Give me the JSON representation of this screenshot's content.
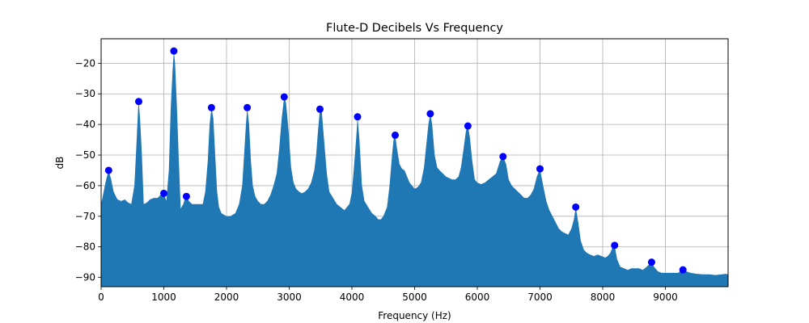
{
  "chart_data": {
    "type": "area",
    "title": "Flute-D Decibels Vs Frequency",
    "xlabel": "Frequency (Hz)",
    "ylabel": "dB",
    "xlim": [
      0,
      10000
    ],
    "ylim": [
      -93,
      -12
    ],
    "grid": true,
    "xticks": [
      0,
      1000,
      2000,
      3000,
      4000,
      5000,
      6000,
      7000,
      8000,
      9000
    ],
    "xtick_labels": [
      "0",
      "1000",
      "2000",
      "3000",
      "4000",
      "5000",
      "6000",
      "7000",
      "8000",
      "9000"
    ],
    "yticks": [
      -90,
      -80,
      -70,
      -60,
      -50,
      -40,
      -30,
      -20
    ],
    "ytick_labels": [
      "−90",
      "−80",
      "−70",
      "−60",
      "−50",
      "−40",
      "−30",
      "−20"
    ],
    "colors": {
      "fill": "#1f77b4",
      "peaks": "#0000ff",
      "grid": "#b0b0b0"
    },
    "spectrum": [
      [
        0,
        -66
      ],
      [
        40,
        -62
      ],
      [
        80,
        -58
      ],
      [
        120,
        -55
      ],
      [
        160,
        -58
      ],
      [
        200,
        -62
      ],
      [
        260,
        -64.5
      ],
      [
        320,
        -65
      ],
      [
        380,
        -64.5
      ],
      [
        430,
        -65.5
      ],
      [
        480,
        -66
      ],
      [
        530,
        -60
      ],
      [
        560,
        -48
      ],
      [
        590,
        -35
      ],
      [
        600,
        -32.5
      ],
      [
        620,
        -38
      ],
      [
        650,
        -50
      ],
      [
        680,
        -66
      ],
      [
        730,
        -65.5
      ],
      [
        780,
        -64.5
      ],
      [
        840,
        -64
      ],
      [
        900,
        -64
      ],
      [
        950,
        -63
      ],
      [
        1000,
        -62.5
      ],
      [
        1040,
        -65
      ],
      [
        1080,
        -55
      ],
      [
        1110,
        -35
      ],
      [
        1140,
        -22
      ],
      [
        1160,
        -16
      ],
      [
        1180,
        -20
      ],
      [
        1210,
        -35
      ],
      [
        1240,
        -52
      ],
      [
        1270,
        -67.5
      ],
      [
        1310,
        -66
      ],
      [
        1340,
        -64
      ],
      [
        1360,
        -63.5
      ],
      [
        1400,
        -65
      ],
      [
        1450,
        -66
      ],
      [
        1500,
        -66
      ],
      [
        1560,
        -66
      ],
      [
        1620,
        -66
      ],
      [
        1660,
        -62
      ],
      [
        1700,
        -52
      ],
      [
        1730,
        -40
      ],
      [
        1760,
        -34.5
      ],
      [
        1790,
        -38
      ],
      [
        1820,
        -50
      ],
      [
        1850,
        -62
      ],
      [
        1880,
        -67
      ],
      [
        1920,
        -69
      ],
      [
        1960,
        -69.5
      ],
      [
        2000,
        -70
      ],
      [
        2060,
        -70
      ],
      [
        2100,
        -69.5
      ],
      [
        2140,
        -69
      ],
      [
        2200,
        -66
      ],
      [
        2250,
        -60
      ],
      [
        2280,
        -50
      ],
      [
        2310,
        -40
      ],
      [
        2330,
        -34.5
      ],
      [
        2360,
        -40
      ],
      [
        2390,
        -52
      ],
      [
        2420,
        -60
      ],
      [
        2460,
        -63.5
      ],
      [
        2500,
        -65
      ],
      [
        2550,
        -66
      ],
      [
        2600,
        -66
      ],
      [
        2650,
        -65
      ],
      [
        2700,
        -63
      ],
      [
        2750,
        -60
      ],
      [
        2800,
        -56
      ],
      [
        2840,
        -48
      ],
      [
        2880,
        -38
      ],
      [
        2920,
        -31
      ],
      [
        2950,
        -33
      ],
      [
        2990,
        -42
      ],
      [
        3030,
        -54
      ],
      [
        3070,
        -59
      ],
      [
        3110,
        -61
      ],
      [
        3160,
        -62
      ],
      [
        3200,
        -62.5
      ],
      [
        3250,
        -62
      ],
      [
        3300,
        -61
      ],
      [
        3350,
        -59
      ],
      [
        3400,
        -55
      ],
      [
        3430,
        -50
      ],
      [
        3460,
        -42
      ],
      [
        3490,
        -35
      ],
      [
        3520,
        -36
      ],
      [
        3560,
        -46
      ],
      [
        3600,
        -56
      ],
      [
        3640,
        -62
      ],
      [
        3700,
        -64
      ],
      [
        3760,
        -66
      ],
      [
        3820,
        -67
      ],
      [
        3880,
        -68
      ],
      [
        3920,
        -67
      ],
      [
        3960,
        -66
      ],
      [
        4000,
        -62
      ],
      [
        4040,
        -52
      ],
      [
        4070,
        -44
      ],
      [
        4090,
        -37.5
      ],
      [
        4120,
        -45
      ],
      [
        4160,
        -60
      ],
      [
        4200,
        -65
      ],
      [
        4260,
        -67
      ],
      [
        4320,
        -69
      ],
      [
        4380,
        -70
      ],
      [
        4420,
        -71
      ],
      [
        4460,
        -71
      ],
      [
        4500,
        -70
      ],
      [
        4560,
        -67
      ],
      [
        4600,
        -60
      ],
      [
        4640,
        -50
      ],
      [
        4670,
        -44
      ],
      [
        4690,
        -43.5
      ],
      [
        4720,
        -48
      ],
      [
        4760,
        -53
      ],
      [
        4800,
        -54.5
      ],
      [
        4840,
        -55
      ],
      [
        4880,
        -57
      ],
      [
        4920,
        -59
      ],
      [
        4960,
        -60
      ],
      [
        5000,
        -61
      ],
      [
        5050,
        -60.5
      ],
      [
        5100,
        -59
      ],
      [
        5150,
        -54
      ],
      [
        5190,
        -46
      ],
      [
        5220,
        -40
      ],
      [
        5250,
        -36.5
      ],
      [
        5280,
        -40
      ],
      [
        5320,
        -50
      ],
      [
        5360,
        -54
      ],
      [
        5400,
        -55
      ],
      [
        5450,
        -56
      ],
      [
        5500,
        -57
      ],
      [
        5550,
        -57.5
      ],
      [
        5600,
        -58
      ],
      [
        5650,
        -58
      ],
      [
        5700,
        -57
      ],
      [
        5740,
        -54
      ],
      [
        5780,
        -48
      ],
      [
        5820,
        -42
      ],
      [
        5850,
        -40.5
      ],
      [
        5880,
        -44
      ],
      [
        5920,
        -52
      ],
      [
        5960,
        -58
      ],
      [
        6000,
        -59
      ],
      [
        6060,
        -59.5
      ],
      [
        6120,
        -59
      ],
      [
        6180,
        -58
      ],
      [
        6240,
        -57
      ],
      [
        6300,
        -56
      ],
      [
        6360,
        -52
      ],
      [
        6410,
        -50.5
      ],
      [
        6460,
        -53
      ],
      [
        6500,
        -58
      ],
      [
        6550,
        -60
      ],
      [
        6600,
        -61
      ],
      [
        6650,
        -62
      ],
      [
        6700,
        -63
      ],
      [
        6750,
        -64
      ],
      [
        6800,
        -64
      ],
      [
        6850,
        -63
      ],
      [
        6900,
        -61
      ],
      [
        6950,
        -57
      ],
      [
        7000,
        -54.5
      ],
      [
        7050,
        -60
      ],
      [
        7100,
        -65
      ],
      [
        7150,
        -68
      ],
      [
        7200,
        -70
      ],
      [
        7250,
        -72
      ],
      [
        7300,
        -74
      ],
      [
        7350,
        -75
      ],
      [
        7400,
        -75.5
      ],
      [
        7450,
        -76
      ],
      [
        7500,
        -74
      ],
      [
        7540,
        -71
      ],
      [
        7570,
        -67
      ],
      [
        7610,
        -72
      ],
      [
        7650,
        -78
      ],
      [
        7700,
        -81
      ],
      [
        7750,
        -82
      ],
      [
        7800,
        -82.5
      ],
      [
        7860,
        -83
      ],
      [
        7920,
        -82.5
      ],
      [
        7980,
        -83
      ],
      [
        8040,
        -83.5
      ],
      [
        8080,
        -83
      ],
      [
        8120,
        -82
      ],
      [
        8160,
        -80
      ],
      [
        8190,
        -79.5
      ],
      [
        8230,
        -84
      ],
      [
        8280,
        -86.5
      ],
      [
        8340,
        -87
      ],
      [
        8400,
        -87.5
      ],
      [
        8460,
        -87
      ],
      [
        8520,
        -87
      ],
      [
        8580,
        -87
      ],
      [
        8640,
        -87.5
      ],
      [
        8700,
        -86.5
      ],
      [
        8750,
        -85.5
      ],
      [
        8780,
        -85
      ],
      [
        8820,
        -86.5
      ],
      [
        8880,
        -88
      ],
      [
        8940,
        -88.5
      ],
      [
        9000,
        -88.5
      ],
      [
        9100,
        -88.5
      ],
      [
        9200,
        -88.5
      ],
      [
        9280,
        -87.5
      ],
      [
        9330,
        -88
      ],
      [
        9400,
        -88.5
      ],
      [
        9500,
        -88.8
      ],
      [
        9600,
        -89
      ],
      [
        9700,
        -89
      ],
      [
        9800,
        -89.2
      ],
      [
        9900,
        -89
      ],
      [
        9960,
        -88.8
      ],
      [
        10000,
        -89
      ]
    ],
    "peaks": [
      {
        "x": 120,
        "y": -55
      },
      {
        "x": 600,
        "y": -32.5
      },
      {
        "x": 1000,
        "y": -62.5
      },
      {
        "x": 1160,
        "y": -16
      },
      {
        "x": 1360,
        "y": -63.5
      },
      {
        "x": 1760,
        "y": -34.5
      },
      {
        "x": 2330,
        "y": -34.5
      },
      {
        "x": 2920,
        "y": -31
      },
      {
        "x": 3490,
        "y": -35
      },
      {
        "x": 4090,
        "y": -37.5
      },
      {
        "x": 4690,
        "y": -43.5
      },
      {
        "x": 5250,
        "y": -36.5
      },
      {
        "x": 5850,
        "y": -40.5
      },
      {
        "x": 6410,
        "y": -50.5
      },
      {
        "x": 7000,
        "y": -54.5
      },
      {
        "x": 7570,
        "y": -67
      },
      {
        "x": 8190,
        "y": -79.5
      },
      {
        "x": 8780,
        "y": -85
      },
      {
        "x": 9280,
        "y": -87.5
      }
    ]
  }
}
